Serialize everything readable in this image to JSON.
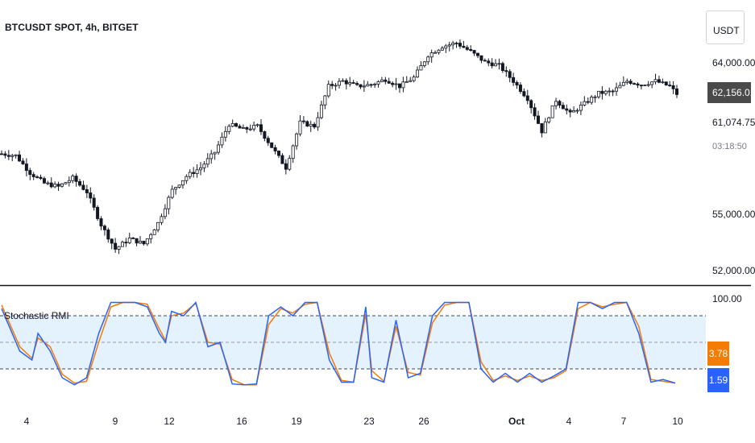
{
  "header": {
    "title": "BTCUSDT SPOT, 4h, BITGET",
    "currency": "USDT"
  },
  "price_axis": {
    "labels": [
      "64,000.00",
      "61,074.75",
      "55,000.00",
      "52,000.00"
    ],
    "current_price": "62,156.01",
    "countdown": "03:18:50"
  },
  "indicator": {
    "name": "Stochastic RMI",
    "top_label": "100.00",
    "k_value": "3.78",
    "d_value": "1.59"
  },
  "x_axis": {
    "labels": [
      {
        "text": "4",
        "bold": false
      },
      {
        "text": "9",
        "bold": false
      },
      {
        "text": "12",
        "bold": false
      },
      {
        "text": "16",
        "bold": false
      },
      {
        "text": "19",
        "bold": false
      },
      {
        "text": "23",
        "bold": false
      },
      {
        "text": "26",
        "bold": false
      },
      {
        "text": "Oct",
        "bold": true
      },
      {
        "text": "4",
        "bold": false
      },
      {
        "text": "7",
        "bold": false
      },
      {
        "text": "10",
        "bold": false
      }
    ]
  },
  "colors": {
    "candle": "#131722",
    "stoch_k": "#2962ff",
    "stoch_d": "#f57c00",
    "band_fill": "#e3f2fd",
    "price_badge": "#4a4a4a",
    "k_badge": "#f57c00",
    "d_badge": "#2962ff"
  },
  "chart_data": [
    {
      "type": "line",
      "title": "BTCUSDT SPOT, 4h, BITGET",
      "note_series_kind": "candlestick closes (approximate path)",
      "x": [
        "4",
        "9",
        "12",
        "16",
        "19",
        "23",
        "26",
        "Oct",
        "4",
        "7",
        "10"
      ],
      "y_ticks": [
        52000,
        55000,
        61074.75,
        64000
      ],
      "series": [
        {
          "values": [
            [
              0,
              58700
            ],
            [
              4,
              58600
            ],
            [
              8,
              57600
            ],
            [
              12,
              57000
            ],
            [
              16,
              56800
            ],
            [
              20,
              57300
            ],
            [
              24,
              56500
            ],
            [
              28,
              54600
            ],
            [
              32,
              53200
            ],
            [
              36,
              53800
            ],
            [
              40,
              53500
            ],
            [
              44,
              54700
            ],
            [
              48,
              56600
            ],
            [
              52,
              57400
            ],
            [
              56,
              57900
            ],
            [
              60,
              58800
            ],
            [
              64,
              60400
            ],
            [
              68,
              60100
            ],
            [
              72,
              60300
            ],
            [
              76,
              59100
            ],
            [
              80,
              57900
            ],
            [
              84,
              60500
            ],
            [
              88,
              60300
            ],
            [
              92,
              62600
            ],
            [
              96,
              62900
            ],
            [
              100,
              62600
            ],
            [
              104,
              62700
            ],
            [
              108,
              63000
            ],
            [
              112,
              62600
            ],
            [
              116,
              63100
            ],
            [
              120,
              64400
            ],
            [
              124,
              64900
            ],
            [
              128,
              65100
            ],
            [
              132,
              64600
            ],
            [
              136,
              64000
            ],
            [
              140,
              63800
            ],
            [
              144,
              62900
            ],
            [
              148,
              61900
            ],
            [
              152,
              60000
            ],
            [
              156,
              61800
            ],
            [
              160,
              61000
            ],
            [
              164,
              61600
            ],
            [
              168,
              62200
            ],
            [
              172,
              62300
            ],
            [
              176,
              62900
            ],
            [
              180,
              62700
            ],
            [
              184,
              62900
            ],
            [
              188,
              62600
            ],
            [
              190,
              62156
            ]
          ]
        }
      ]
    },
    {
      "type": "line",
      "title": "Stochastic RMI",
      "ylim": [
        0,
        100
      ],
      "bands": [
        20,
        50,
        80
      ],
      "series": [
        {
          "name": "",
          "color": "#2962ff",
          "values": [
            [
              0,
              88
            ],
            [
              3,
              40
            ],
            [
              5,
              30
            ],
            [
              6,
              60
            ],
            [
              8,
              40
            ],
            [
              10,
              10
            ],
            [
              12,
              2
            ],
            [
              14,
              10
            ],
            [
              16,
              60
            ],
            [
              18,
              95
            ],
            [
              20,
              95
            ],
            [
              22,
              95
            ],
            [
              24,
              90
            ],
            [
              26,
              60
            ],
            [
              27,
              50
            ],
            [
              28,
              85
            ],
            [
              30,
              80
            ],
            [
              32,
              95
            ],
            [
              34,
              45
            ],
            [
              36,
              50
            ],
            [
              38,
              3
            ],
            [
              40,
              2
            ],
            [
              42,
              3
            ],
            [
              44,
              80
            ],
            [
              46,
              90
            ],
            [
              48,
              80
            ],
            [
              50,
              95
            ],
            [
              52,
              95
            ],
            [
              54,
              30
            ],
            [
              56,
              5
            ],
            [
              58,
              5
            ],
            [
              60,
              90
            ],
            [
              61,
              10
            ],
            [
              63,
              5
            ],
            [
              65,
              75
            ],
            [
              67,
              10
            ],
            [
              69,
              15
            ],
            [
              71,
              80
            ],
            [
              73,
              95
            ],
            [
              75,
              95
            ],
            [
              77,
              95
            ],
            [
              79,
              20
            ],
            [
              81,
              5
            ],
            [
              83,
              15
            ],
            [
              85,
              5
            ],
            [
              87,
              15
            ],
            [
              89,
              5
            ],
            [
              91,
              12
            ],
            [
              93,
              20
            ],
            [
              95,
              95
            ],
            [
              97,
              95
            ],
            [
              99,
              88
            ],
            [
              101,
              95
            ],
            [
              103,
              95
            ],
            [
              105,
              60
            ],
            [
              107,
              5
            ],
            [
              109,
              8
            ],
            [
              111,
              4
            ]
          ]
        },
        {
          "name": "",
          "color": "#f57c00",
          "values": [
            [
              0,
              92
            ],
            [
              3,
              45
            ],
            [
              5,
              32
            ],
            [
              6,
              55
            ],
            [
              8,
              45
            ],
            [
              10,
              14
            ],
            [
              12,
              4
            ],
            [
              14,
              6
            ],
            [
              16,
              50
            ],
            [
              18,
              90
            ],
            [
              20,
              95
            ],
            [
              22,
              95
            ],
            [
              24,
              93
            ],
            [
              26,
              65
            ],
            [
              27,
              52
            ],
            [
              28,
              80
            ],
            [
              30,
              83
            ],
            [
              32,
              94
            ],
            [
              34,
              50
            ],
            [
              36,
              48
            ],
            [
              38,
              8
            ],
            [
              40,
              2
            ],
            [
              42,
              2
            ],
            [
              44,
              70
            ],
            [
              46,
              88
            ],
            [
              48,
              83
            ],
            [
              50,
              93
            ],
            [
              52,
              95
            ],
            [
              54,
              38
            ],
            [
              56,
              7
            ],
            [
              58,
              5
            ],
            [
              60,
              82
            ],
            [
              61,
              18
            ],
            [
              63,
              6
            ],
            [
              65,
              68
            ],
            [
              67,
              16
            ],
            [
              69,
              13
            ],
            [
              71,
              72
            ],
            [
              73,
              92
            ],
            [
              75,
              95
            ],
            [
              77,
              95
            ],
            [
              79,
              28
            ],
            [
              81,
              7
            ],
            [
              83,
              12
            ],
            [
              85,
              7
            ],
            [
              87,
              12
            ],
            [
              89,
              7
            ],
            [
              91,
              10
            ],
            [
              93,
              18
            ],
            [
              95,
              88
            ],
            [
              97,
              95
            ],
            [
              99,
              90
            ],
            [
              101,
              93
            ],
            [
              103,
              95
            ],
            [
              105,
              68
            ],
            [
              107,
              8
            ],
            [
              109,
              6
            ],
            [
              111,
              4
            ]
          ]
        }
      ]
    }
  ]
}
